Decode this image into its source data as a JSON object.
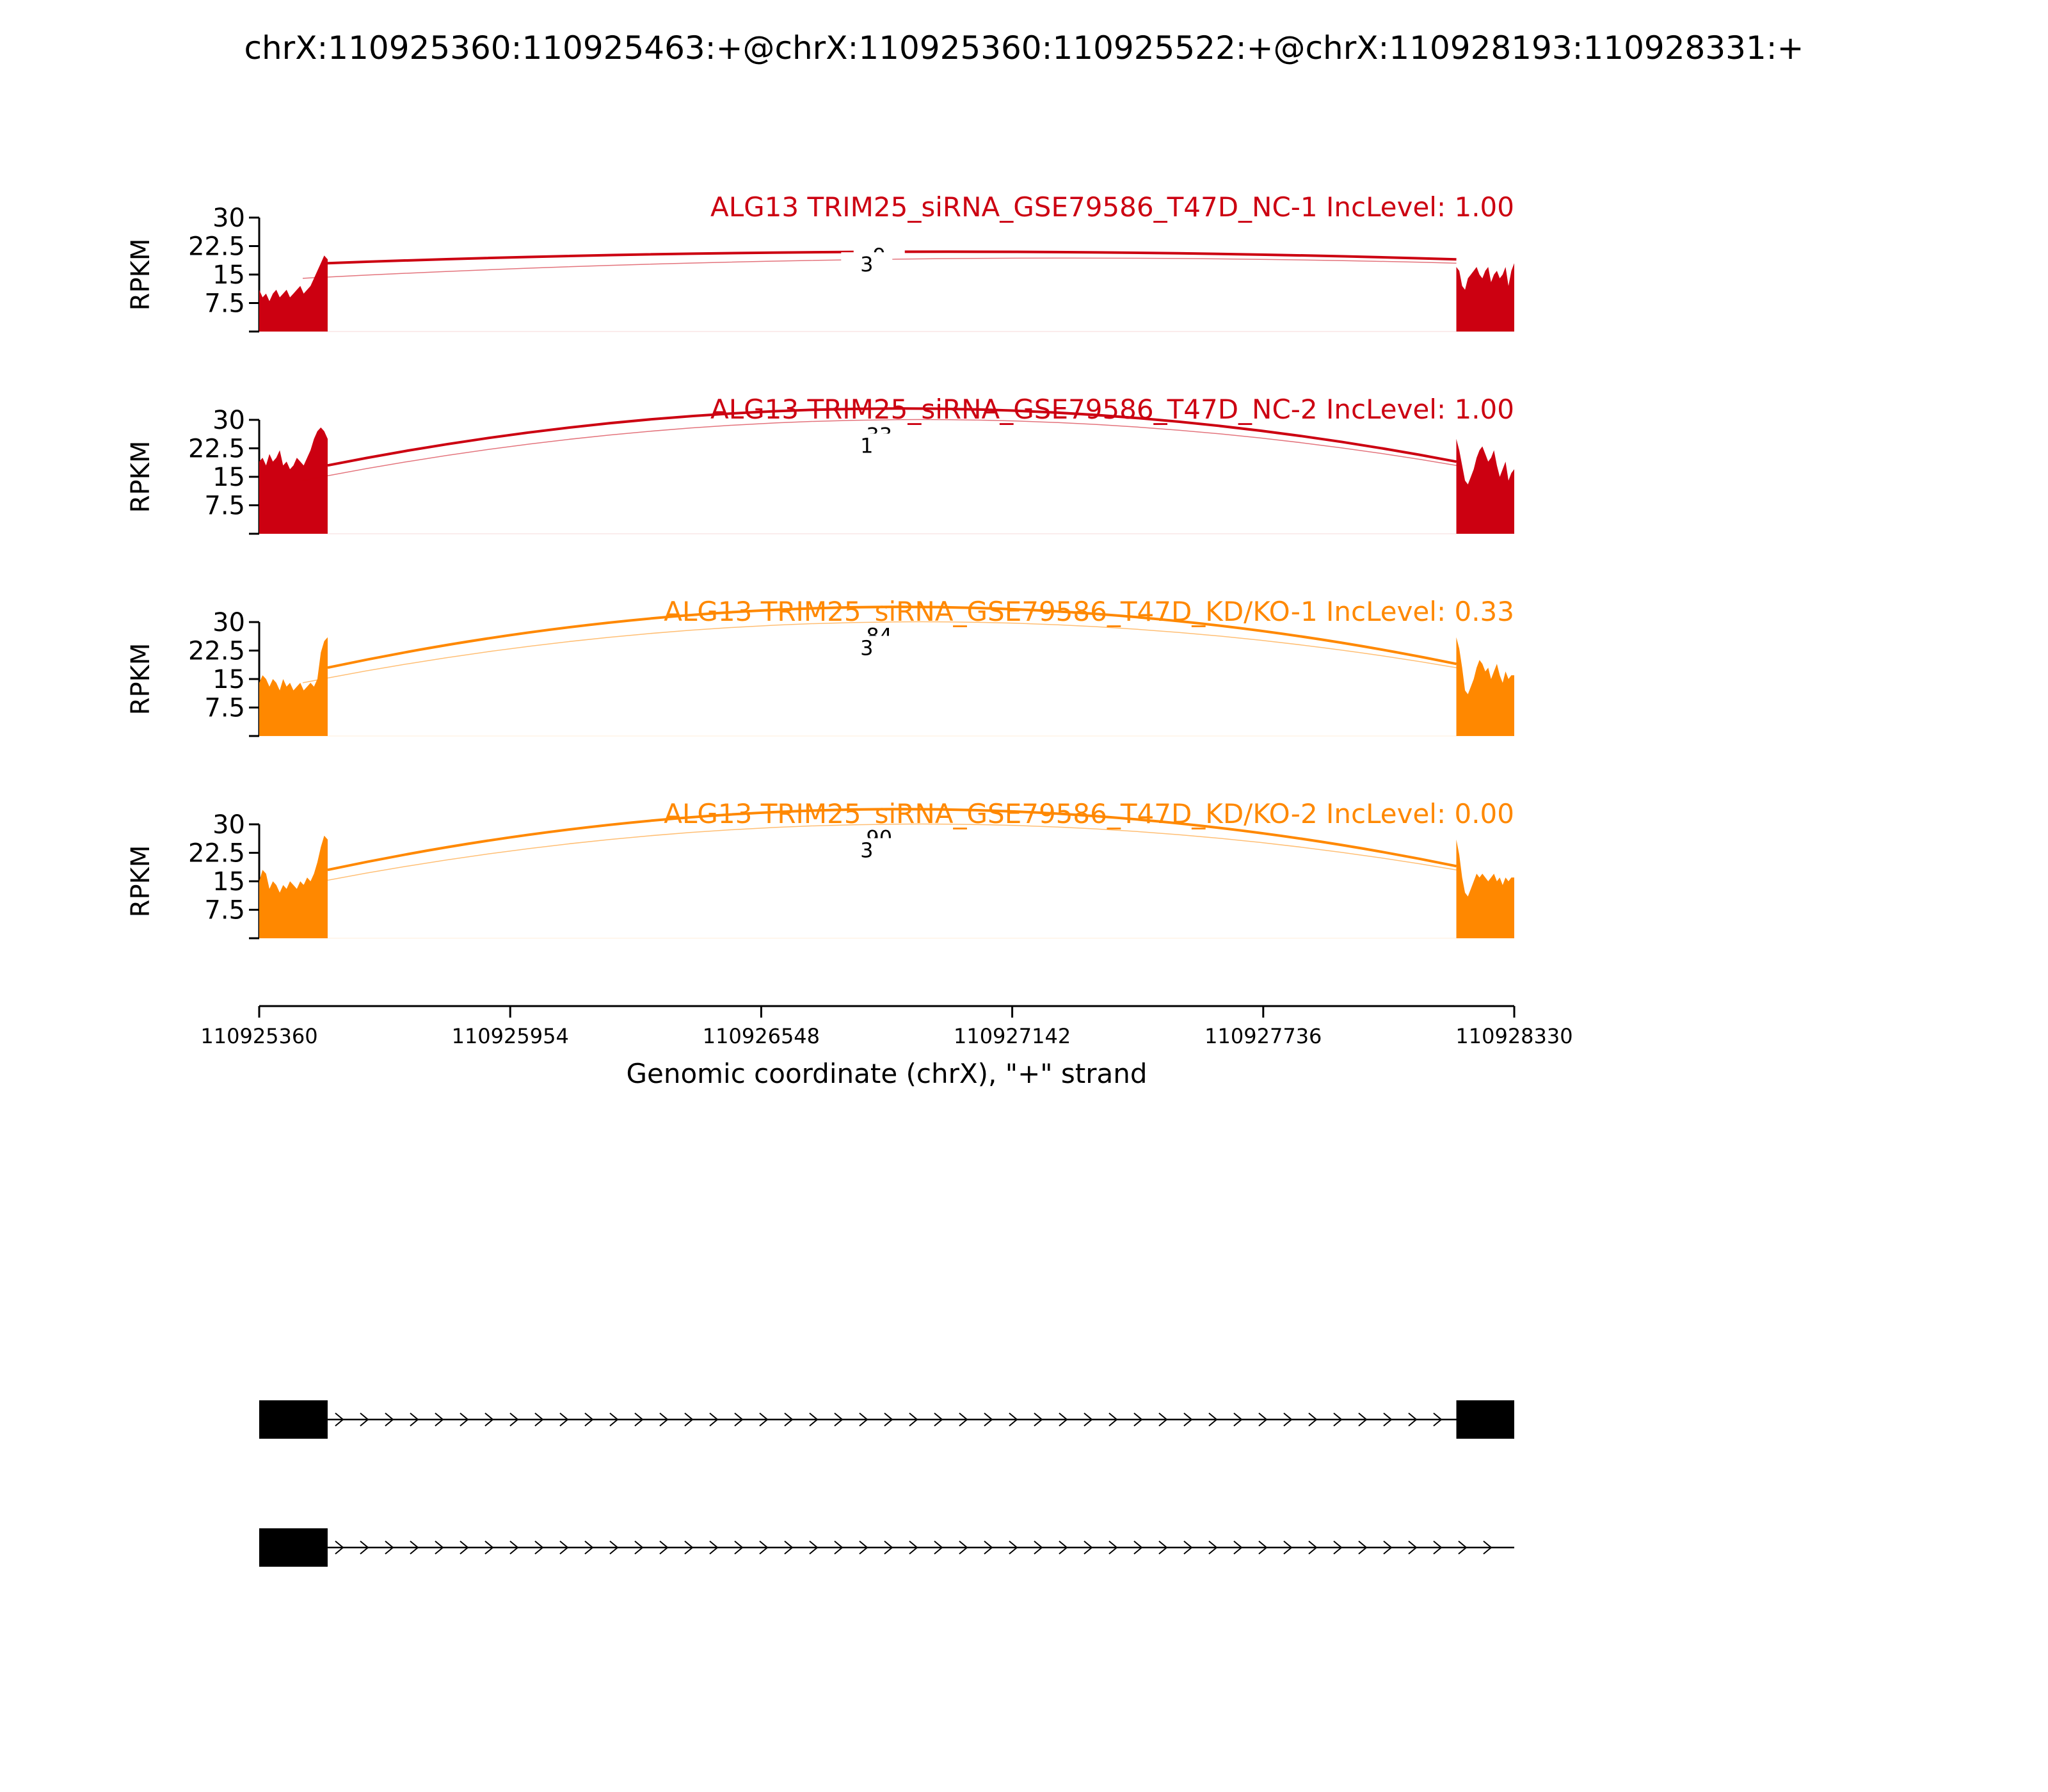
{
  "figure": {
    "title": "chrX:110925360:110925463:+@chrX:110925360:110925522:+@chrX:110928193:110928331:+"
  },
  "chart_data": {
    "type": "sashimi",
    "x_axis": {
      "label": "Genomic coordinate (chrX), \"+\" strand",
      "range": [
        110925360,
        110928330
      ],
      "ticks": [
        "110925360",
        "110925954",
        "110926548",
        "110927142",
        "110927736",
        "110928330"
      ]
    },
    "exons": [
      {
        "start": 110925360,
        "end": 110925522
      },
      {
        "start": 110928193,
        "end": 110928330
      }
    ],
    "panels": [
      {
        "label": "ALG13 TRIM25_siRNA_GSE79586_T47D_NC-1 IncLevel: 1.00",
        "color": "#cc0011",
        "ylabel": "RPKM",
        "yticks": [
          "30",
          "22.5",
          "15",
          "7.5"
        ],
        "ylim": [
          0,
          30
        ],
        "junctions": [
          {
            "from": 110925522,
            "to": 110928193,
            "count": "9",
            "height": 21,
            "thick": true
          },
          {
            "from": 110925463,
            "to": 110928193,
            "count": "3",
            "height": 19,
            "thick": false
          }
        ],
        "coverage": {
          "left": [
            11,
            9,
            10,
            8,
            10,
            11,
            9,
            10,
            11,
            9,
            10,
            11,
            12,
            10,
            11,
            12,
            14,
            16,
            18,
            20,
            19
          ],
          "right": [
            17,
            16,
            12,
            11,
            14,
            15,
            16,
            17,
            15,
            14,
            16,
            17,
            13,
            15,
            16,
            14,
            15,
            17,
            12,
            16,
            18
          ]
        }
      },
      {
        "label": "ALG13 TRIM25_siRNA_GSE79586_T47D_NC-2 IncLevel: 1.00",
        "color": "#cc0011",
        "ylabel": "RPKM",
        "yticks": [
          "30",
          "22.5",
          "15",
          "7.5"
        ],
        "ylim": [
          0,
          30
        ],
        "junctions": [
          {
            "from": 110925522,
            "to": 110928193,
            "count": "33",
            "height": 33,
            "thick": true
          },
          {
            "from": 110925463,
            "to": 110928193,
            "count": "1",
            "height": 30,
            "thick": false
          }
        ],
        "coverage": {
          "left": [
            19,
            20,
            18,
            21,
            19,
            20,
            22,
            18,
            19,
            17,
            18,
            20,
            19,
            18,
            20,
            22,
            25,
            27,
            28,
            27,
            25
          ],
          "right": [
            25,
            22,
            18,
            14,
            13,
            15,
            17,
            20,
            22,
            23,
            21,
            19,
            20,
            22,
            18,
            15,
            17,
            19,
            14,
            16,
            17
          ]
        }
      },
      {
        "label": "ALG13 TRIM25_siRNA_GSE79586_T47D_KD/KO-1 IncLevel: 0.33",
        "color": "#ff8800",
        "ylabel": "RPKM",
        "yticks": [
          "30",
          "22.5",
          "15",
          "7.5"
        ],
        "ylim": [
          0,
          30
        ],
        "junctions": [
          {
            "from": 110925522,
            "to": 110928193,
            "count": "84",
            "height": 34,
            "thick": true
          },
          {
            "from": 110925463,
            "to": 110928193,
            "count": "3",
            "height": 30,
            "thick": false
          }
        ],
        "coverage": {
          "left": [
            14,
            16,
            15,
            13,
            15,
            14,
            12,
            15,
            13,
            14,
            12,
            13,
            14,
            12,
            13,
            14,
            13,
            15,
            22,
            25,
            26
          ],
          "right": [
            26,
            23,
            18,
            12,
            11,
            13,
            15,
            18,
            20,
            19,
            17,
            18,
            15,
            17,
            19,
            16,
            14,
            17,
            15,
            16,
            16
          ]
        }
      },
      {
        "label": "ALG13 TRIM25_siRNA_GSE79586_T47D_KD/KO-2 IncLevel: 0.00",
        "color": "#ff8800",
        "ylabel": "RPKM",
        "yticks": [
          "30",
          "22.5",
          "15",
          "7.5"
        ],
        "ylim": [
          0,
          30
        ],
        "junctions": [
          {
            "from": 110925522,
            "to": 110928193,
            "count": "90",
            "height": 34,
            "thick": true
          },
          {
            "from": 110925463,
            "to": 110928193,
            "count": "3",
            "height": 30,
            "thick": false
          }
        ],
        "coverage": {
          "left": [
            15,
            18,
            17,
            13,
            15,
            14,
            12,
            14,
            13,
            15,
            14,
            13,
            15,
            14,
            16,
            15,
            17,
            20,
            24,
            27,
            26
          ],
          "right": [
            26,
            22,
            16,
            12,
            11,
            13,
            15,
            17,
            16,
            17,
            16,
            15,
            16,
            17,
            15,
            16,
            14,
            16,
            15,
            16,
            16
          ]
        }
      }
    ],
    "isoforms": [
      {
        "exons": [
          [
            110925360,
            110925522
          ],
          [
            110928193,
            110928330
          ]
        ],
        "line_end": 110928330
      },
      {
        "exons": [
          [
            110925360,
            110925522
          ]
        ],
        "line_end": 110928330
      }
    ]
  }
}
